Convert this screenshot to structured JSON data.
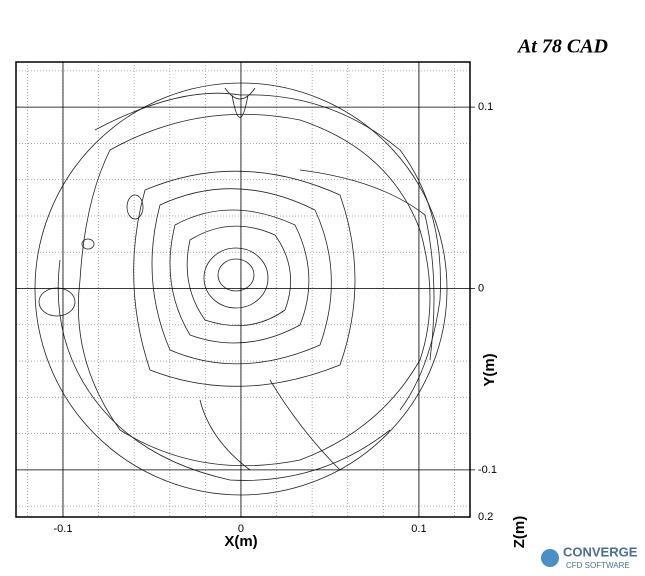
{
  "chart_data": {
    "type": "streamline",
    "title": "At 78 CAD",
    "x_label": "X(m)",
    "y_label": "Y(m)",
    "z_label": "Z(m)",
    "z_tick_label": "0.2",
    "xlim": [
      -0.1264,
      0.1287
    ],
    "ylim": [
      -0.126,
      0.1249
    ],
    "xticks": [
      -0.1,
      0,
      0.1
    ],
    "yticks": [
      -0.1,
      0,
      0.1
    ],
    "x_grid": [
      -0.12,
      -0.1,
      -0.08,
      -0.06,
      -0.04,
      -0.02,
      0,
      0.02,
      0.04,
      0.06,
      0.08,
      0.1,
      0.12
    ],
    "y_grid": [
      -0.12,
      -0.1,
      -0.08,
      -0.06,
      -0.04,
      -0.02,
      0,
      0.02,
      0.04,
      0.06,
      0.08,
      0.1,
      0.12
    ],
    "grid": true
  },
  "logo": {
    "name": "CONVERGE",
    "tagline": "CFD SOFTWARE"
  }
}
